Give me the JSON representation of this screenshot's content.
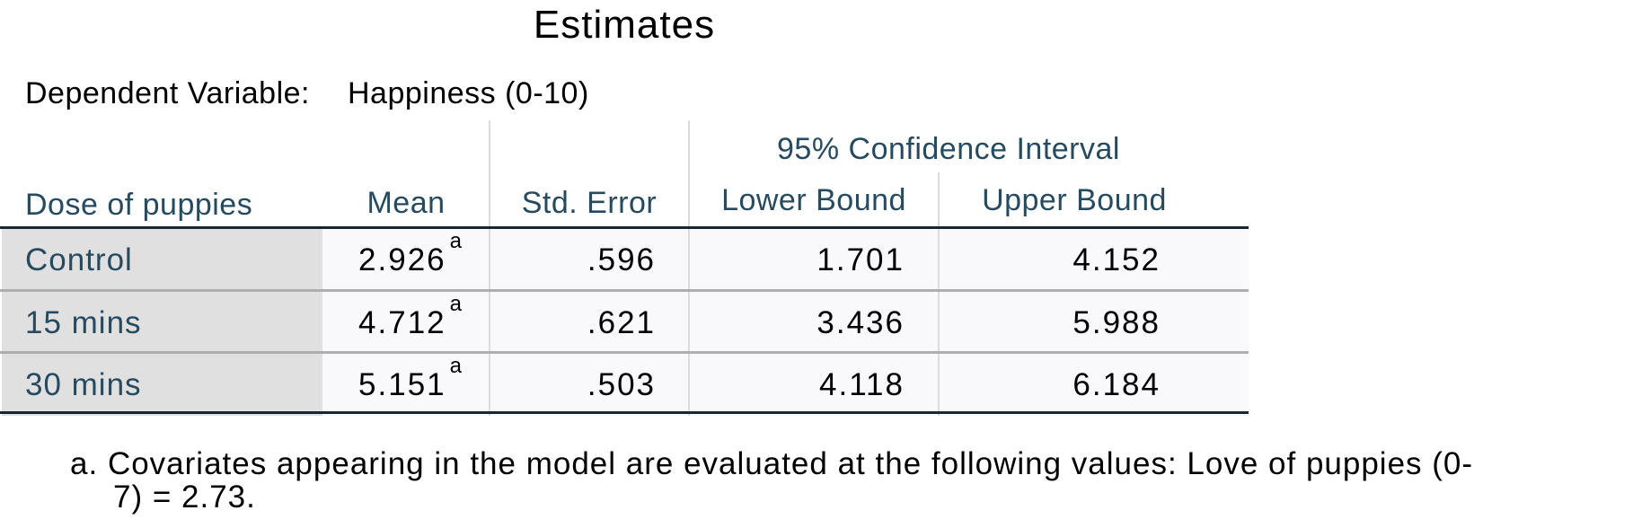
{
  "title": "Estimates",
  "dependent_variable": {
    "label": "Dependent Variable:",
    "value": "Happiness (0-10)"
  },
  "table": {
    "row_header": "Dose of puppies",
    "columns": {
      "mean": "Mean",
      "std_error": "Std. Error",
      "ci_group": "95% Confidence Interval",
      "lower": "Lower Bound",
      "upper": "Upper Bound"
    },
    "rows": [
      {
        "label": "Control",
        "mean": "2.926",
        "mean_note": "a",
        "std_error": ".596",
        "lower": "1.701",
        "upper": "4.152"
      },
      {
        "label": "15 mins",
        "mean": "4.712",
        "mean_note": "a",
        "std_error": ".621",
        "lower": "3.436",
        "upper": "5.988"
      },
      {
        "label": "30 mins",
        "mean": "5.151",
        "mean_note": "a",
        "std_error": ".503",
        "lower": "4.118",
        "upper": "6.184"
      }
    ]
  },
  "footnote": {
    "marker": "a.",
    "line1": "Covariates appearing in the model are evaluated at the following values: Love of puppies (0-",
    "line2": "7) = 2.73."
  },
  "colors": {
    "header_text": "#264a60",
    "row_label_bg": "#e0e0e0",
    "data_bg": "#f9f9fb",
    "rule_dark": "#152935",
    "rule_light": "#aeaeae"
  }
}
